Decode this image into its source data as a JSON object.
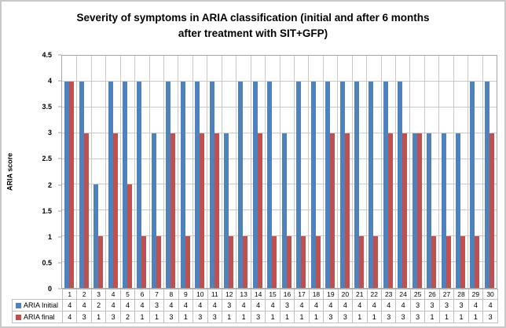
{
  "window": {
    "background": "#ffffff",
    "frame_border_color": "#c9c9c9"
  },
  "colors": {
    "series_initial": "#4F81BD",
    "series_final": "#C0504D",
    "gridline": "#c9c9c9",
    "plot_border": "#a6a6a6",
    "table_border": "#bfbfbf",
    "text": "#000000"
  },
  "chart_data": {
    "type": "bar",
    "title": "Severity of symptoms in ARIA classification (initial and after 6 months after treatment with SIT+GFP)",
    "xlabel": "",
    "ylabel": "ARIA score",
    "ylim": [
      0,
      4.5
    ],
    "ytick_labels": [
      "0",
      "0.5",
      "1",
      "1.5",
      "2",
      "2.5",
      "3",
      "3.5",
      "4",
      "4.5"
    ],
    "grid": {
      "horizontal": true,
      "vertical": true
    },
    "legend_position": "data-table-left",
    "has_data_table": true,
    "categories": [
      "1",
      "2",
      "3",
      "4",
      "5",
      "6",
      "7",
      "8",
      "9",
      "10",
      "11",
      "12",
      "13",
      "14",
      "15",
      "16",
      "17",
      "18",
      "19",
      "20",
      "21",
      "22",
      "23",
      "24",
      "25",
      "26",
      "27",
      "28",
      "29",
      "30"
    ],
    "series": [
      {
        "name": "ARIA Initial",
        "color": "#4F81BD",
        "values": [
          4,
          4,
          2,
          4,
          4,
          4,
          3,
          4,
          4,
          4,
          4,
          3,
          4,
          4,
          4,
          3,
          4,
          4,
          4,
          4,
          4,
          4,
          4,
          4,
          3,
          3,
          3,
          3,
          4,
          4
        ]
      },
      {
        "name": "ARIA final",
        "color": "#C0504D",
        "values": [
          4,
          3,
          1,
          3,
          2,
          1,
          1,
          3,
          1,
          3,
          3,
          1,
          1,
          3,
          1,
          1,
          1,
          1,
          3,
          3,
          1,
          1,
          3,
          3,
          3,
          1,
          1,
          1,
          1,
          3
        ]
      }
    ]
  }
}
